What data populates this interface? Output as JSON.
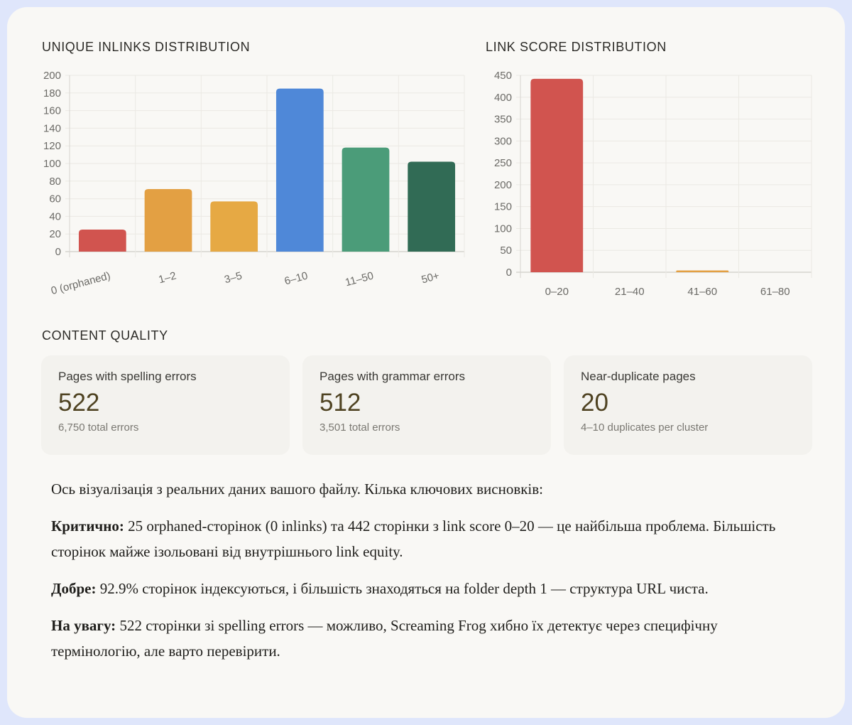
{
  "charts": {
    "inlinks": {
      "title": "UNIQUE INLINKS DISTRIBUTION"
    },
    "link_score": {
      "title": "LINK SCORE DISTRIBUTION"
    }
  },
  "chart_data": [
    {
      "type": "bar",
      "title": "UNIQUE INLINKS DISTRIBUTION",
      "categories": [
        "0 (orphaned)",
        "1–2",
        "3–5",
        "6–10",
        "11–50",
        "50+"
      ],
      "values": [
        25,
        71,
        57,
        185,
        118,
        102
      ],
      "colors": [
        "#d1544f",
        "#e3a043",
        "#e6a944",
        "#4f88d8",
        "#4b9c79",
        "#316b55"
      ],
      "xlabel": "",
      "ylabel": "",
      "ylim": [
        0,
        200
      ],
      "yticks": [
        0,
        20,
        40,
        60,
        80,
        100,
        120,
        140,
        160,
        180,
        200
      ],
      "grid": true,
      "legend": null
    },
    {
      "type": "bar",
      "title": "LINK SCORE DISTRIBUTION",
      "categories": [
        "0–20",
        "21–40",
        "41–60",
        "61–80"
      ],
      "values": [
        442,
        0,
        4,
        0
      ],
      "colors": [
        "#d1544f",
        "#e3a043",
        "#e3a043",
        "#e3a043"
      ],
      "xlabel": "",
      "ylabel": "",
      "ylim": [
        0,
        450
      ],
      "yticks": [
        0,
        50,
        100,
        150,
        200,
        250,
        300,
        350,
        400,
        450
      ],
      "grid": true,
      "legend": null
    }
  ],
  "content_quality": {
    "title": "CONTENT QUALITY",
    "cards": [
      {
        "label": "Pages with spelling errors",
        "value": "522",
        "sub": "6,750 total errors"
      },
      {
        "label": "Pages with grammar errors",
        "value": "512",
        "sub": "3,501 total errors"
      },
      {
        "label": "Near-duplicate pages",
        "value": "20",
        "sub": "4–10 duplicates per cluster"
      }
    ]
  },
  "summary": {
    "intro": "Ось візуалізація з реальних даних вашого файлу. Кілька ключових висновків:",
    "points": [
      {
        "label": "Критично:",
        "text": " 25 orphaned-сторінок (0 inlinks) та 442 сторінки з link score 0–20 — це найбільша проблема. Більшість сторінок майже ізольовані від внутрішнього link equity."
      },
      {
        "label": "Добре:",
        "text": " 92.9% сторінок індексуються, і більшість знаходяться на folder depth 1 — структура URL чиста."
      },
      {
        "label": "На увагу:",
        "text": " 522 сторінки зі spelling errors — можливо, Screaming Frog хибно їх детектує через специфічну термінологію, але варто перевірити."
      }
    ]
  },
  "colors": {
    "frame_border": "#dfe6fb",
    "background": "#f9f8f5",
    "card_bg": "#f3f2ee",
    "value_text": "#4f4322"
  }
}
